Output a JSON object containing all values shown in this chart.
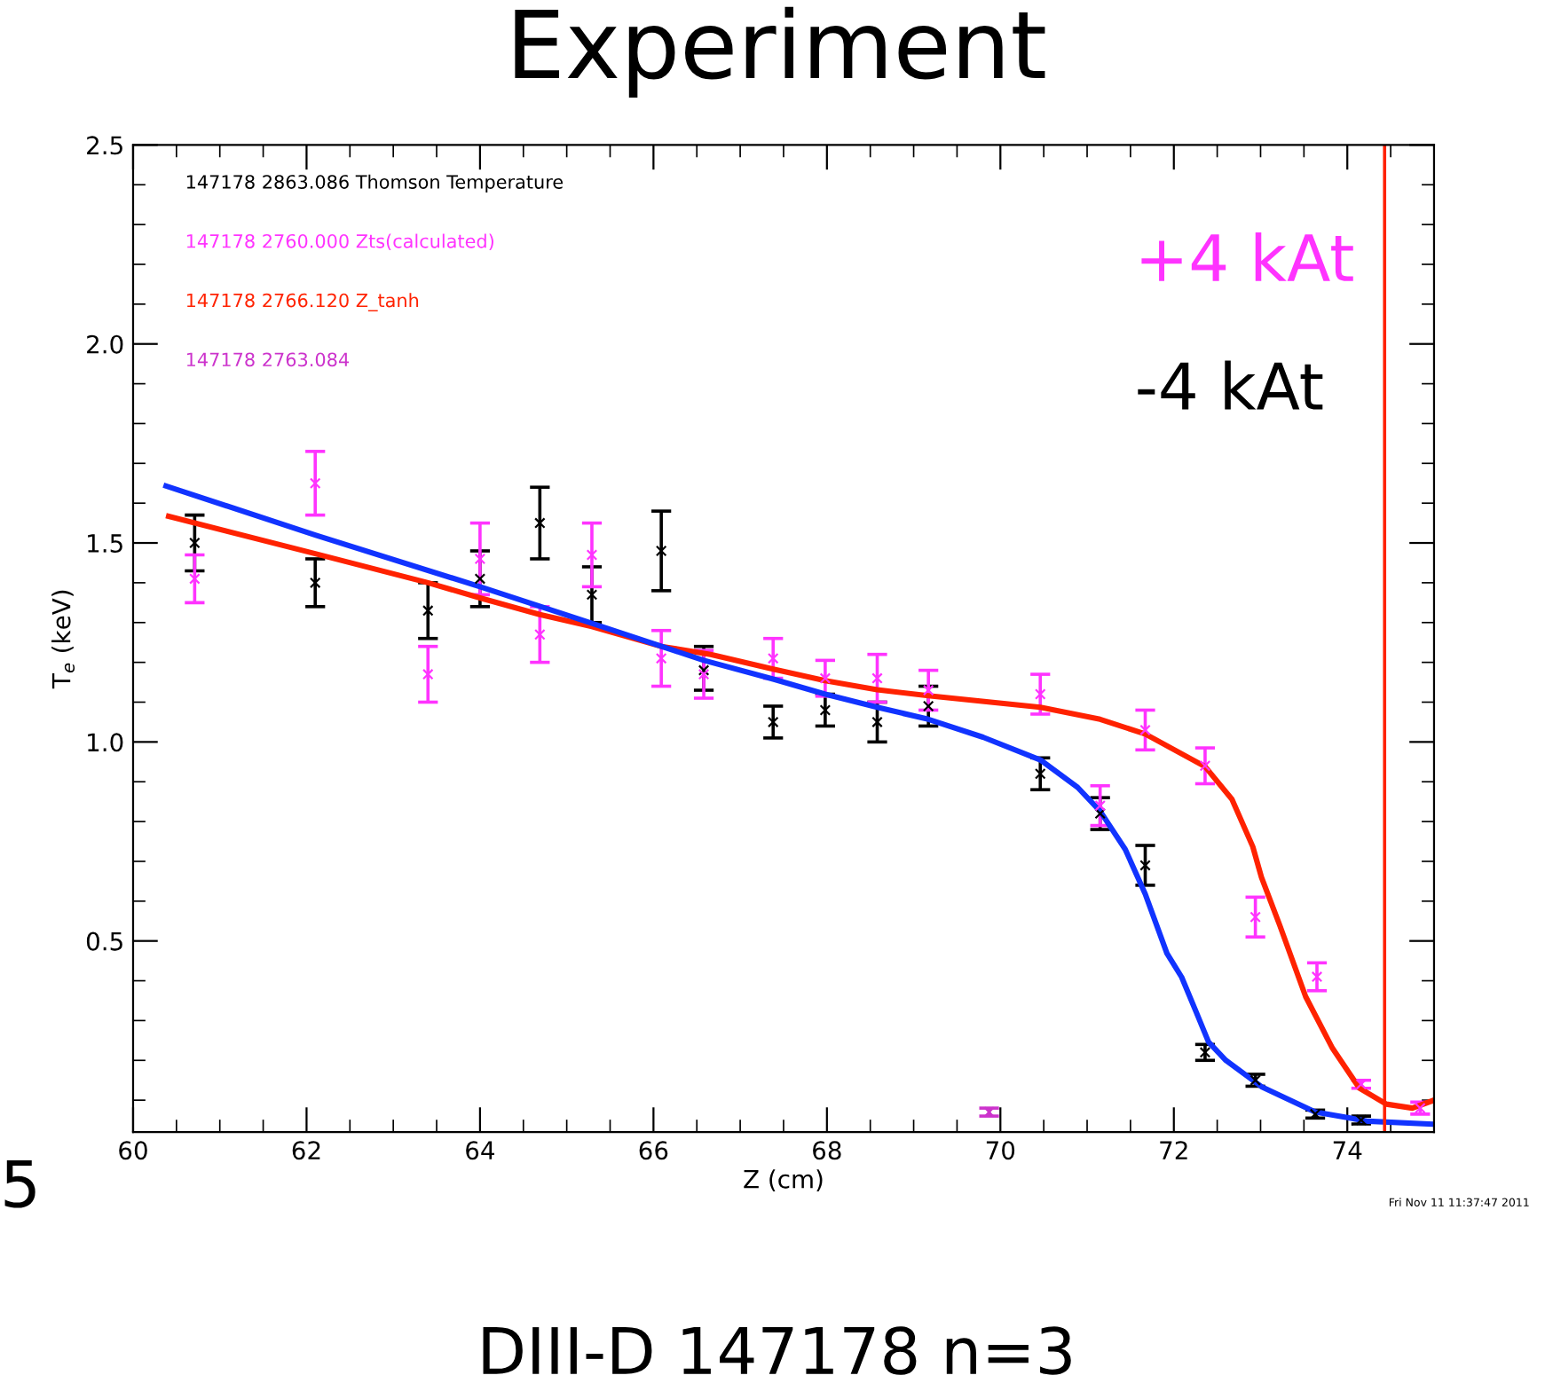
{
  "chart_data": {
    "type": "scatter",
    "title": "Experiment",
    "xlabel": "Z (cm)",
    "ylabel": "T$_{e}$ (keV)",
    "xlim": [
      60,
      75
    ],
    "ylim": [
      0.02,
      2.5
    ],
    "xticks": [
      60,
      62,
      64,
      66,
      68,
      70,
      72,
      74
    ],
    "yticks": [
      0.5,
      {
        "value": 1,
        "label": "1.0"
      },
      1.5,
      {
        "value": 2,
        "label": "2.0"
      },
      2.5
    ],
    "grid": false,
    "legend": "top left",
    "marker": "cross",
    "series": [
      {
        "name": "147178 2863.086 Thomson Temperature",
        "color": "#000000",
        "x": [
          60.71,
          62.1,
          63.4,
          64.0,
          64.69,
          65.29,
          66.09,
          66.58,
          67.38,
          67.98,
          68.58,
          69.17,
          70.46,
          71.15,
          71.67,
          72.36,
          72.94,
          73.63,
          74.16
        ],
        "values": [
          1.5,
          1.4,
          1.33,
          1.41,
          1.55,
          1.37,
          1.48,
          1.18,
          1.05,
          1.08,
          1.05,
          1.09,
          0.92,
          0.82,
          0.69,
          0.22,
          0.15,
          0.065,
          0.05
        ],
        "errors": [
          0.07,
          0.06,
          0.07,
          0.07,
          0.09,
          0.07,
          0.1,
          [
            1.13,
            1.24
          ],
          0.04,
          0.04,
          0.05,
          0.05,
          0.04,
          0.04,
          0.05,
          0.02,
          0.015,
          0.01,
          0.01
        ]
      },
      {
        "name": "147178 2760.000 Zts(calculated)",
        "color": "#ff33ff",
        "x": [
          60.71,
          62.1,
          63.4,
          64.0,
          64.69,
          65.29,
          66.09,
          66.58,
          67.38,
          67.98,
          68.58,
          69.17,
          70.46,
          71.15,
          71.67,
          72.36,
          72.94,
          73.65,
          74.16,
          74.84
        ],
        "values": [
          1.41,
          1.65,
          1.17,
          1.46,
          1.27,
          1.47,
          1.21,
          1.17,
          1.21,
          1.16,
          1.16,
          1.13,
          1.12,
          0.84,
          1.03,
          0.94,
          0.56,
          0.41,
          0.14,
          0.08
        ],
        "errors": [
          0.06,
          0.08,
          0.07,
          0.09,
          0.07,
          0.08,
          0.07,
          0.06,
          0.05,
          0.045,
          0.06,
          0.05,
          0.05,
          0.05,
          0.05,
          0.045,
          0.05,
          0.035,
          0.01,
          0.015
        ]
      },
      {
        "name": "147178 2766.120 Z_tanh",
        "color": "#ff2200",
        "type": "line",
        "marker": "none",
        "x": [
          60.41,
          62.1,
          63.4,
          64.0,
          64.69,
          65.29,
          66.09,
          66.66,
          67.38,
          67.98,
          68.58,
          69.17,
          70.46,
          71.15,
          71.67,
          72.36,
          72.67,
          72.91,
          73.01,
          73.22,
          73.52,
          73.83,
          74.14,
          74.45,
          74.75,
          75.0
        ],
        "values": [
          1.567,
          1.473,
          1.4,
          1.362,
          1.32,
          1.29,
          1.24,
          1.22,
          1.183,
          1.154,
          1.131,
          1.116,
          1.087,
          1.057,
          1.02,
          0.938,
          0.856,
          0.737,
          0.66,
          0.54,
          0.36,
          0.23,
          0.13,
          0.09,
          0.08,
          0.1
        ]
      },
      {
        "name": "147178 2763.084",
        "color": "#cc33cc",
        "x": [
          69.87
        ],
        "values": [
          0.07
        ],
        "errors": [
          0.01
        ]
      },
      {
        "color": "#1133ff",
        "type": "line",
        "marker": "none",
        "x": [
          60.38,
          62.1,
          64.0,
          65.29,
          66.58,
          67.38,
          67.98,
          68.58,
          69.17,
          69.8,
          70.46,
          70.89,
          71.15,
          71.44,
          71.67,
          71.92,
          72.09,
          72.26,
          72.4,
          72.6,
          73.01,
          73.63,
          74.24,
          74.96
        ],
        "values": [
          1.643,
          1.52,
          1.39,
          1.298,
          1.205,
          1.158,
          1.12,
          1.087,
          1.057,
          1.012,
          0.955,
          0.886,
          0.826,
          0.73,
          0.618,
          0.469,
          0.409,
          0.32,
          0.246,
          0.2,
          0.134,
          0.07,
          0.047,
          0.04
        ]
      }
    ],
    "ref_lines": [
      {
        "axis": "x",
        "value": 74.43,
        "color": "#ff2200",
        "line_style": "solid"
      }
    ],
    "annotations": [
      "+4 kAt",
      "-4 kAt",
      "Fri Nov 11 11:37:47 2011",
      "DIII-D 147178 n=3",
      "5"
    ]
  }
}
